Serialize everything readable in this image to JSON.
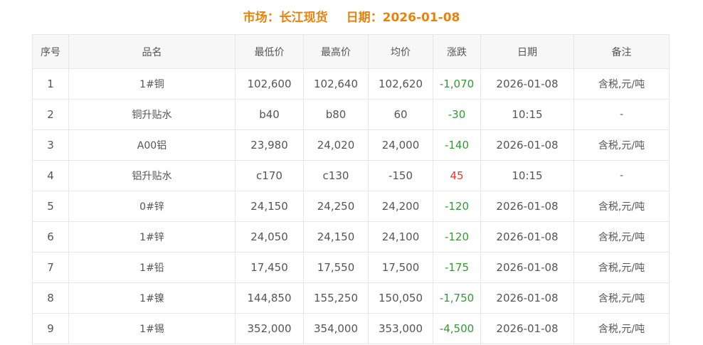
{
  "page": {
    "title": {
      "market": "市场：长江现货",
      "date": "日期：2026-01-08"
    }
  },
  "table": {
    "headers": [
      "序号",
      "品名",
      "最低价",
      "最高价",
      "均价",
      "涨跌",
      "日期",
      "备注"
    ],
    "rows": [
      {
        "no": "1",
        "name": "1#铜",
        "low": "102,600",
        "high": "102,640",
        "avg": "102,620",
        "change": "-1,070",
        "change_dir": "down",
        "date": "2026-01-08",
        "note": "含税,元/吨"
      },
      {
        "no": "2",
        "name": "铜升贴水",
        "low": "b40",
        "high": "b80",
        "avg": "60",
        "change": "-30",
        "change_dir": "down",
        "date": "10:15",
        "note": "-"
      },
      {
        "no": "3",
        "name": "A00铝",
        "low": "23,980",
        "high": "24,020",
        "avg": "24,000",
        "change": "-140",
        "change_dir": "down",
        "date": "2026-01-08",
        "note": "含税,元/吨"
      },
      {
        "no": "4",
        "name": "铝升贴水",
        "low": "c170",
        "high": "c130",
        "avg": "-150",
        "change": "45",
        "change_dir": "up",
        "date": "10:15",
        "note": "-"
      },
      {
        "no": "5",
        "name": "0#锌",
        "low": "24,150",
        "high": "24,250",
        "avg": "24,200",
        "change": "-120",
        "change_dir": "down",
        "date": "2026-01-08",
        "note": "含税,元/吨"
      },
      {
        "no": "6",
        "name": "1#锌",
        "low": "24,050",
        "high": "24,150",
        "avg": "24,100",
        "change": "-120",
        "change_dir": "down",
        "date": "2026-01-08",
        "note": "含税,元/吨"
      },
      {
        "no": "7",
        "name": "1#铅",
        "low": "17,450",
        "high": "17,550",
        "avg": "17,500",
        "change": "-175",
        "change_dir": "down",
        "date": "2026-01-08",
        "note": "含税,元/吨"
      },
      {
        "no": "8",
        "name": "1#镍",
        "low": "144,850",
        "high": "155,250",
        "avg": "150,050",
        "change": "-1,750",
        "change_dir": "down",
        "date": "2026-01-08",
        "note": "含税,元/吨"
      },
      {
        "no": "9",
        "name": "1#锡",
        "low": "352,000",
        "high": "354,000",
        "avg": "353,000",
        "change": "-4,500",
        "change_dir": "down",
        "date": "2026-01-08",
        "note": "含税,元/吨"
      }
    ]
  },
  "colors": {
    "title_orange": "#e8820c",
    "decline_green": "#339933",
    "rise_red": "#ee3333",
    "border_gray": "#e7e7e7",
    "header_bg": "#f7f7f7",
    "text_gray": "#555555"
  }
}
